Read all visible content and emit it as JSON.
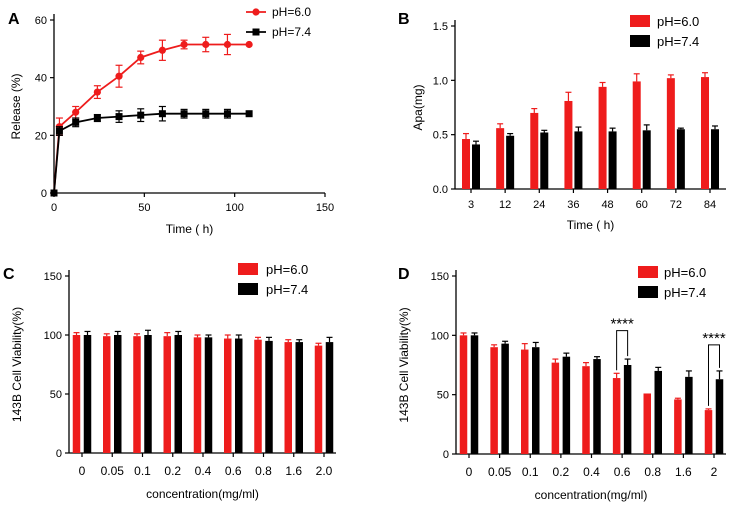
{
  "figure": {
    "series_colors": {
      "pH=6.0": "#ee1c1c",
      "pH=7.4": "#000000"
    }
  },
  "chart_data": [
    {
      "panel": "A",
      "type": "line",
      "xlabel": "Time ( h)",
      "ylabel": "Release (%)",
      "xlim": [
        0,
        150
      ],
      "ylim": [
        0,
        60
      ],
      "xticks": [
        0,
        50,
        100,
        150
      ],
      "yticks": [
        0,
        20,
        40,
        60
      ],
      "legend_position": "top-right",
      "series": [
        {
          "name": "pH=6.0",
          "color": "#ee1c1c",
          "marker": "circle",
          "x": [
            0,
            3,
            12,
            24,
            36,
            48,
            60,
            72,
            84,
            96,
            108
          ],
          "y": [
            0,
            23,
            28,
            35,
            40.5,
            47,
            49.5,
            51.5,
            51.5,
            51.5,
            51.5
          ],
          "err": [
            0,
            3,
            2,
            2.2,
            3.8,
            2.2,
            3.5,
            1.5,
            2.5,
            3.5,
            0
          ]
        },
        {
          "name": "pH=7.4",
          "color": "#000000",
          "marker": "square",
          "x": [
            0,
            3,
            12,
            24,
            36,
            48,
            60,
            72,
            84,
            96,
            108
          ],
          "y": [
            0,
            21.5,
            24.5,
            26,
            26.5,
            27,
            27.5,
            27.5,
            27.5,
            27.5,
            27.5
          ],
          "err": [
            0,
            1.5,
            1.5,
            1.2,
            2,
            2.2,
            2.5,
            1.5,
            1.5,
            1.5,
            0
          ]
        }
      ]
    },
    {
      "panel": "B",
      "type": "bar",
      "xlabel": "Time ( h)",
      "ylabel": "Apa(mg)",
      "ylim": [
        0,
        1.5
      ],
      "yticks": [
        0.0,
        0.5,
        1.0,
        1.5
      ],
      "ytick_labels": [
        "0.0",
        "0.5",
        "1.0",
        "1.5"
      ],
      "legend_position": "top-right",
      "categories": [
        "3",
        "12",
        "24",
        "36",
        "48",
        "60",
        "72",
        "84"
      ],
      "series": [
        {
          "name": "pH=6.0",
          "color": "#ee1c1c",
          "values": [
            0.46,
            0.56,
            0.7,
            0.81,
            0.94,
            0.99,
            1.02,
            1.03
          ],
          "err": [
            0.05,
            0.04,
            0.04,
            0.08,
            0.04,
            0.07,
            0.03,
            0.04
          ]
        },
        {
          "name": "pH=7.4",
          "color": "#000000",
          "values": [
            0.41,
            0.49,
            0.52,
            0.53,
            0.53,
            0.54,
            0.55,
            0.55
          ],
          "err": [
            0.03,
            0.02,
            0.02,
            0.04,
            0.03,
            0.05,
            0.01,
            0.03
          ]
        }
      ]
    },
    {
      "panel": "C",
      "type": "bar",
      "xlabel": "concentration(mg/ml)",
      "ylabel": "143B Cell Viability(%)",
      "ylim": [
        0,
        150
      ],
      "yticks": [
        0,
        50,
        100,
        150
      ],
      "legend_position": "top-right",
      "categories": [
        "0",
        "0.05",
        "0.1",
        "0.2",
        "0.4",
        "0.6",
        "0.8",
        "1.6",
        "2.0"
      ],
      "series": [
        {
          "name": "pH=6.0",
          "color": "#ee1c1c",
          "values": [
            100,
            99,
            99,
            99,
            98,
            97,
            96,
            94,
            91
          ],
          "err": [
            2,
            2,
            2,
            3,
            2,
            3,
            2,
            2,
            2
          ]
        },
        {
          "name": "pH=7.4",
          "color": "#000000",
          "values": [
            100,
            100,
            100,
            100,
            98,
            97,
            95,
            94,
            94
          ],
          "err": [
            3,
            3,
            4,
            3,
            2,
            3,
            3,
            2,
            4
          ]
        }
      ]
    },
    {
      "panel": "D",
      "type": "bar",
      "xlabel": "concentration(mg/ml)",
      "ylabel": "143B Cell Viability(%)",
      "ylim": [
        0,
        150
      ],
      "yticks": [
        0,
        50,
        100,
        150
      ],
      "legend_position": "top-right",
      "categories": [
        "0",
        "0.05",
        "0.1",
        "0.2",
        "0.4",
        "0.6",
        "0.8",
        "1.6",
        "2"
      ],
      "series": [
        {
          "name": "pH=6.0",
          "color": "#ee1c1c",
          "values": [
            100,
            90,
            88,
            77,
            74,
            64,
            51,
            46,
            37
          ],
          "err": [
            2,
            2,
            5,
            3,
            3,
            4,
            0,
            1,
            1
          ]
        },
        {
          "name": "pH=7.4",
          "color": "#000000",
          "values": [
            100,
            93,
            90,
            82,
            80,
            75,
            70,
            65,
            63
          ],
          "err": [
            2,
            2,
            4,
            3,
            2,
            5,
            3,
            5,
            7
          ]
        }
      ],
      "annotations": [
        {
          "text": "****",
          "category_index": 5
        },
        {
          "text": "****",
          "category_index": 8
        }
      ]
    }
  ]
}
